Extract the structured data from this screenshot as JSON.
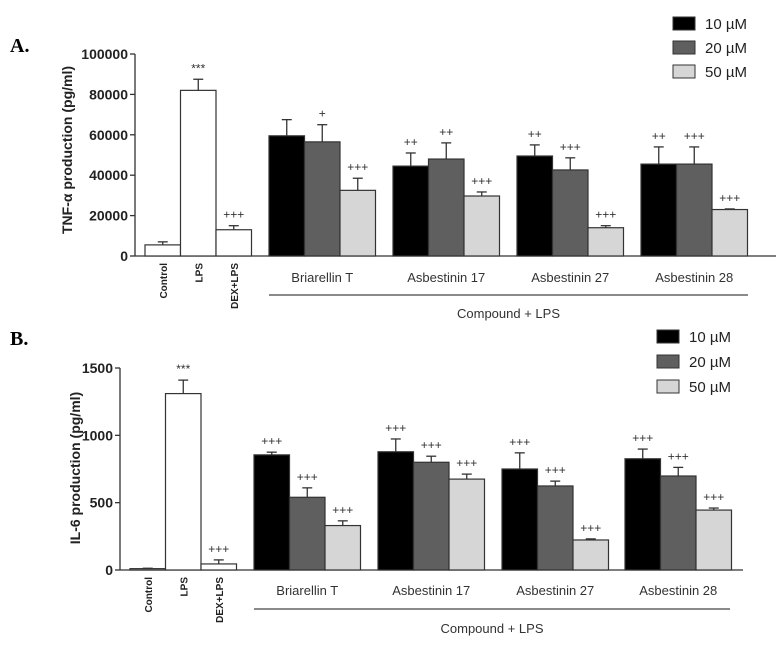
{
  "colors": {
    "c10": "#000000",
    "c20": "#5f5f5f",
    "c50": "#d6d6d6",
    "control": "#ffffff"
  },
  "chart_data": [
    {
      "type": "bar",
      "panel_label": "A.",
      "ylabel": "TNF-α production (pg/ml)",
      "ylim": [
        0,
        100000
      ],
      "yticks": [
        0,
        20000,
        40000,
        60000,
        80000,
        100000
      ],
      "ytick_labels": [
        "0",
        "20000",
        "40000",
        "60000",
        "80000",
        "100000"
      ],
      "controls": [
        {
          "label": "Control",
          "value": 5500,
          "err": 1500,
          "annot": ""
        },
        {
          "label": "LPS",
          "value": 82000,
          "err": 5500,
          "annot": "***"
        },
        {
          "label": "DEX+LPS",
          "value": 13000,
          "err": 2000,
          "annot": "+++"
        }
      ],
      "groups": [
        {
          "label": "Briarellin T",
          "values": [
            59500,
            56500,
            32500
          ],
          "err": [
            8000,
            8500,
            6000
          ],
          "annot": [
            "",
            "+",
            "+++"
          ]
        },
        {
          "label": "Asbestinin 17",
          "values": [
            44500,
            48000,
            29700
          ],
          "err": [
            6500,
            8000,
            2000
          ],
          "annot": [
            "++",
            "++",
            "+++"
          ]
        },
        {
          "label": "Asbestinin 27",
          "values": [
            49500,
            42600,
            14000
          ],
          "err": [
            5500,
            6000,
            1000
          ],
          "annot": [
            "++",
            "+++",
            "+++"
          ]
        },
        {
          "label": "Asbestinin 28",
          "values": [
            45500,
            45500,
            23000
          ],
          "err": [
            8500,
            8500,
            300
          ],
          "annot": [
            "++",
            "+++",
            "+++"
          ]
        }
      ],
      "group_axis_label": "Compound + LPS",
      "legend": [
        "10 µM",
        "20 µM",
        "50 µM"
      ],
      "legend_position": "top-right"
    },
    {
      "type": "bar",
      "panel_label": "B.",
      "ylabel": "IL-6 production (pg/ml)",
      "ylim": [
        0,
        1500
      ],
      "yticks": [
        0,
        500,
        1000,
        1500
      ],
      "ytick_labels": [
        "0",
        "500",
        "1000",
        "1500"
      ],
      "controls": [
        {
          "label": "Control",
          "value": 10,
          "err": 3,
          "annot": ""
        },
        {
          "label": "LPS",
          "value": 1310,
          "err": 100,
          "annot": "***"
        },
        {
          "label": "DEX+LPS",
          "value": 45,
          "err": 30,
          "annot": "+++"
        }
      ],
      "groups": [
        {
          "label": "Briarellin T",
          "values": [
            855,
            540,
            330
          ],
          "err": [
            20,
            70,
            35
          ],
          "annot": [
            "+++",
            "+++",
            "+++"
          ]
        },
        {
          "label": "Asbestinin 17",
          "values": [
            878,
            800,
            675
          ],
          "err": [
            95,
            45,
            37
          ],
          "annot": [
            "+++",
            "+++",
            "+++"
          ]
        },
        {
          "label": "Asbestinin 27",
          "values": [
            750,
            624,
            223
          ],
          "err": [
            120,
            36,
            8
          ],
          "annot": [
            "+++",
            "+++",
            "+++"
          ]
        },
        {
          "label": "Asbestinin 28",
          "values": [
            826,
            698,
            445
          ],
          "err": [
            72,
            64,
            15
          ],
          "annot": [
            "+++",
            "+++",
            "+++"
          ]
        }
      ],
      "group_axis_label": "Compound + LPS",
      "legend": [
        "10 µM",
        "20 µM",
        "50 µM"
      ],
      "legend_position": "top-right"
    }
  ]
}
